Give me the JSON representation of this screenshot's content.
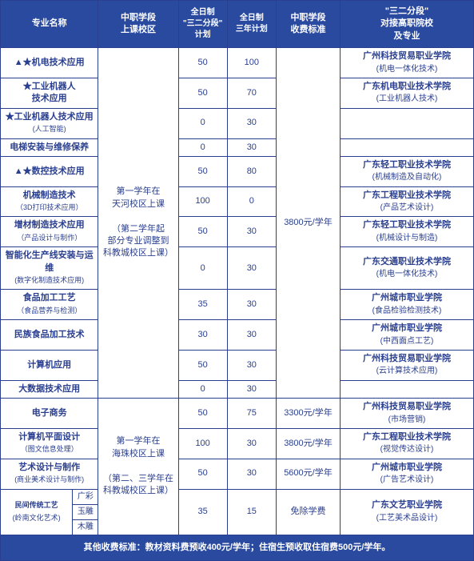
{
  "header": {
    "major": "专业名称",
    "campus": "中职学段\n上课校区",
    "plan32": "全日制\n\"三二分段\"\n计划",
    "plan3": "全日制\n三年计划",
    "fee": "中职学段\n收费标准",
    "univ": "\"三二分段\"\n对接高职院校\n及专业"
  },
  "campus1": "第一学年在\n天河校区上课\n\n（第二学年起\n部分专业调整到\n科教城校区上课）",
  "campus2": "第一学年在\n海珠校区上课\n\n（第二、三学年在\n科教城校区上课）",
  "fee_main": "3800元/学年",
  "fee_a": "3300元/学年",
  "fee_b": "3800元/学年",
  "fee_c": "5600元/学年",
  "fee_d": "免除学费",
  "rows": [
    {
      "major": "▲★机电技术应用",
      "p1": "50",
      "p2": "100",
      "univ": "广州科技贸易职业学院",
      "uspec": "(机电一体化技术)"
    },
    {
      "major": "★工业机器人\n技术应用",
      "p1": "50",
      "p2": "70",
      "univ": "广东机电职业技术学院",
      "uspec": "(工业机器人技术)"
    },
    {
      "major": "★工业机器人技术应用",
      "msub": "(人工智能)",
      "p1": "0",
      "p2": "30",
      "univ": "",
      "uspec": ""
    },
    {
      "major": "电梯安装与维修保养",
      "p1": "0",
      "p2": "30",
      "univ": "",
      "uspec": ""
    },
    {
      "major": "▲★数控技术应用",
      "p1": "50",
      "p2": "80",
      "univ": "广东轻工职业技术学院",
      "uspec": "(机械制造及自动化)"
    },
    {
      "major": "机械制造技术",
      "msub": "（3D打印技术应用）",
      "p1": "100",
      "p2": "0",
      "univ": "广东工程职业技术学院",
      "uspec": "(产品艺术设计)"
    },
    {
      "major": "增材制造技术应用",
      "msub": "（产品设计与制作）",
      "p1": "50",
      "p2": "30",
      "univ": "广东轻工职业技术学院",
      "uspec": "(机械设计与制造)"
    },
    {
      "major": "智能化生产线安装与运维",
      "msub": "(数字化制造技术应用)",
      "p1": "0",
      "p2": "30",
      "univ": "广东交通职业技术学院",
      "uspec": "(机电一体化技术)"
    },
    {
      "major": "食品加工工艺",
      "msub": "（食品营养与检测）",
      "p1": "35",
      "p2": "30",
      "univ": "广州城市职业学院",
      "uspec": "(食品检验检测技术)"
    },
    {
      "major": "民族食品加工技术",
      "p1": "30",
      "p2": "30",
      "univ": "广州城市职业学院",
      "uspec": "(中西面点工艺)"
    },
    {
      "major": "计算机应用",
      "p1": "50",
      "p2": "30",
      "univ": "广州科技贸易职业学院",
      "uspec": "(云计算技术应用)"
    },
    {
      "major": "大数据技术应用",
      "p1": "0",
      "p2": "30",
      "univ": "",
      "uspec": ""
    }
  ],
  "rows2": [
    {
      "major": "电子商务",
      "p1": "50",
      "p2": "75",
      "univ": "广州科技贸易职业学院",
      "uspec": "(市场营销)"
    },
    {
      "major": "计算机平面设计",
      "msub": "（图文信息处理）",
      "p1": "100",
      "p2": "30",
      "univ": "广东工程职业技术学院",
      "uspec": "(视觉传达设计)"
    },
    {
      "major": "艺术设计与制作",
      "msub": "(商业美术设计与制作)",
      "p1": "50",
      "p2": "30",
      "univ": "广州城市职业学院",
      "uspec": "(广告艺术设计)"
    }
  ],
  "row3": {
    "major": "民间传统工艺",
    "msub": "(岭南文化艺术)",
    "subs": [
      "广彩",
      "玉雕",
      "木雕"
    ],
    "p1": "35",
    "p2": "15",
    "univ": "广东文艺职业学院",
    "uspec": "(工艺美术品设计)"
  },
  "footer": "其他收费标准：教材资料费预收400元/学年；住宿生预收取住宿费500元/学年。",
  "colors": {
    "header_bg": "#2a4aa0",
    "border": "#2a3f8f",
    "text": "#2a3f8f"
  }
}
